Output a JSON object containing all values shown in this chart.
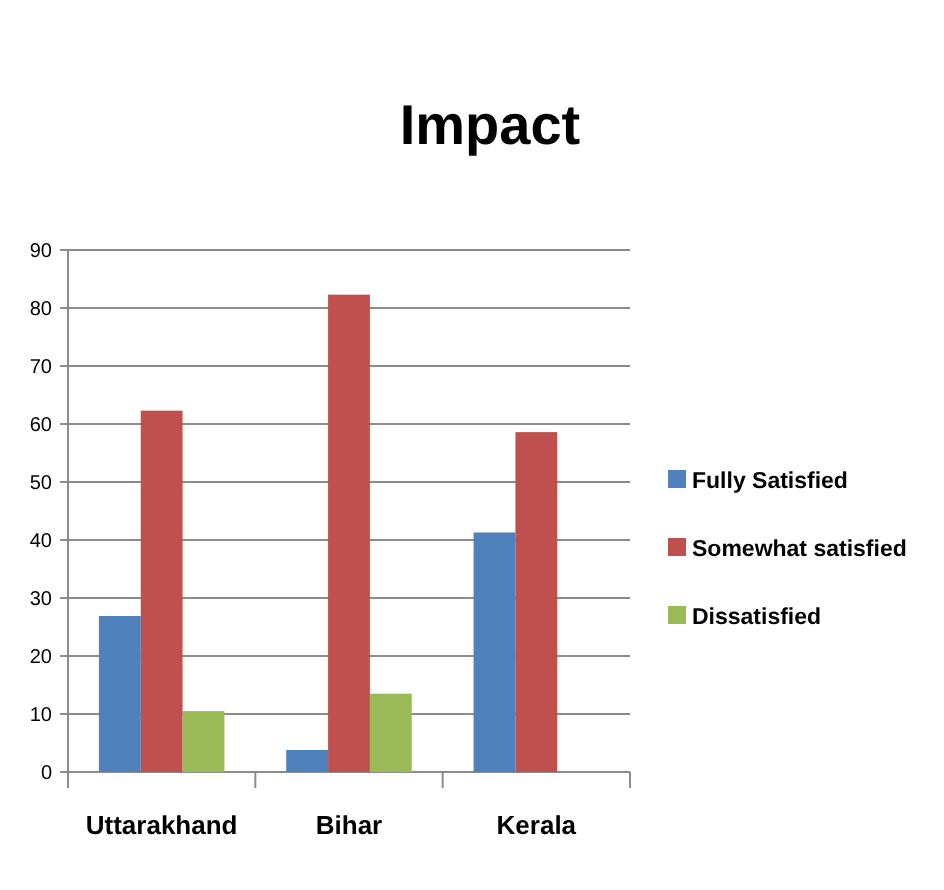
{
  "chart_data": {
    "type": "bar",
    "title": "Impact",
    "categories": [
      "Uttarakhand",
      "Bihar",
      "Kerala"
    ],
    "series": [
      {
        "name": "Fully Satisfied",
        "color": "#4f81bd",
        "values": [
          26.9,
          3.8,
          41.3
        ]
      },
      {
        "name": "Somewhat satisfied",
        "color": "#c0504d",
        "values": [
          62.3,
          82.3,
          58.6
        ]
      },
      {
        "name": "Dissatisfied",
        "color": "#9bbb59",
        "values": [
          10.5,
          13.5,
          null
        ]
      }
    ],
    "ylim": [
      0,
      90
    ],
    "yticks": [
      0,
      10,
      20,
      30,
      40,
      50,
      60,
      70,
      80,
      90
    ],
    "grid": "y",
    "legend": "right"
  }
}
